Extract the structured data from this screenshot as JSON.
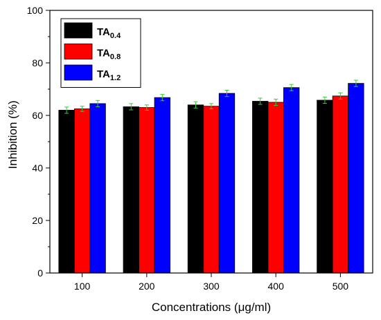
{
  "chart_data": {
    "type": "bar",
    "categories": [
      "100",
      "200",
      "300",
      "400",
      "500"
    ],
    "series": [
      {
        "name": "TA0.4",
        "name_base": "TA",
        "name_sub": "0.4",
        "color": "#000000",
        "values": [
          62.0,
          63.3,
          64.0,
          65.4,
          65.8
        ],
        "errors": [
          1.2,
          1.2,
          1.2,
          1.2,
          1.2
        ]
      },
      {
        "name": "TA0.8",
        "name_base": "TA",
        "name_sub": "0.8",
        "color": "#ff0000",
        "values": [
          62.5,
          63.0,
          63.5,
          65.0,
          67.4
        ],
        "errors": [
          1.0,
          1.0,
          1.0,
          1.2,
          1.2
        ]
      },
      {
        "name": "TA1.2",
        "name_base": "TA",
        "name_sub": "1.2",
        "color": "#0000ff",
        "values": [
          64.5,
          66.8,
          68.4,
          70.6,
          72.2
        ],
        "errors": [
          1.2,
          1.2,
          1.2,
          1.2,
          1.2
        ]
      }
    ],
    "error_bar_color": "#33cc33",
    "xlabel": "Concentrations (μg/ml)",
    "ylabel": "Inhibition (%)",
    "ylim": [
      0,
      100
    ],
    "yticks": [
      "0",
      "20",
      "40",
      "60",
      "80",
      "100"
    ],
    "legend_position": "top-left",
    "grid": false
  }
}
